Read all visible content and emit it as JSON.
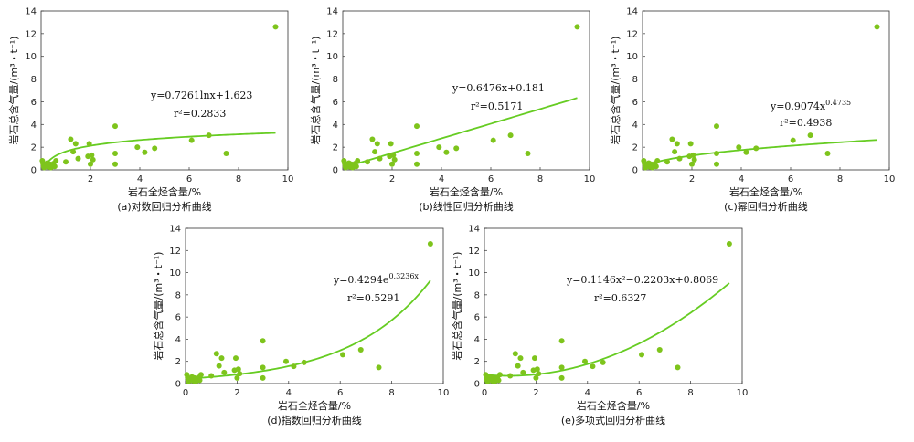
{
  "colors": {
    "points": "#7ec41c",
    "curve": "#66cc22",
    "axis": "#333333"
  },
  "chart_data": [
    {
      "type": "scatter",
      "panel_id": "a",
      "caption": "(a)对数回归分析曲线",
      "xlabel": "岩石全烃含量/%",
      "ylabel": "岩石总含气量/(m³・t⁻¹)",
      "xlim": [
        0,
        10
      ],
      "ylim": [
        0,
        14
      ],
      "xticks": [
        "2",
        "4",
        "6",
        "8",
        "10"
      ],
      "yticks": [
        "0",
        "2",
        "4",
        "6",
        "8",
        "10",
        "12",
        "14"
      ],
      "equation": "y=0.7261lnx+1.623",
      "r2": "r²=0.2833",
      "fit": {
        "model": "log",
        "a": 0.7261,
        "b": 1.623,
        "x_range": [
          0.15,
          9.5
        ]
      },
      "points": [
        [
          0.05,
          0.8
        ],
        [
          0.08,
          0.55
        ],
        [
          0.1,
          0.3
        ],
        [
          0.12,
          0.2
        ],
        [
          0.15,
          0.45
        ],
        [
          0.2,
          0.35
        ],
        [
          0.25,
          0.6
        ],
        [
          0.3,
          0.25
        ],
        [
          0.35,
          0.5
        ],
        [
          0.4,
          0.2
        ],
        [
          0.45,
          0.35
        ],
        [
          0.5,
          0.55
        ],
        [
          0.55,
          0.3
        ],
        [
          0.6,
          0.8
        ],
        [
          1.0,
          0.7
        ],
        [
          1.2,
          2.7
        ],
        [
          1.3,
          1.6
        ],
        [
          1.4,
          2.3
        ],
        [
          1.5,
          1.0
        ],
        [
          1.9,
          1.2
        ],
        [
          1.95,
          2.3
        ],
        [
          2.0,
          0.5
        ],
        [
          2.05,
          1.3
        ],
        [
          2.1,
          0.9
        ],
        [
          3.0,
          3.85
        ],
        [
          3.0,
          1.45
        ],
        [
          3.0,
          0.5
        ],
        [
          3.9,
          2.0
        ],
        [
          4.2,
          1.55
        ],
        [
          4.6,
          1.9
        ],
        [
          6.1,
          2.6
        ],
        [
          6.8,
          3.05
        ],
        [
          7.5,
          1.45
        ],
        [
          9.5,
          12.6
        ]
      ]
    },
    {
      "type": "scatter",
      "panel_id": "b",
      "caption": "(b)线性回归分析曲线",
      "xlabel": "岩石全烃含量/%",
      "ylabel": "岩石总含气量/(m³・t⁻¹)",
      "xlim": [
        0,
        10
      ],
      "ylim": [
        0,
        14
      ],
      "xticks": [
        "2",
        "4",
        "6",
        "8",
        "10"
      ],
      "yticks": [
        "0",
        "2",
        "4",
        "6",
        "8",
        "10",
        "12",
        "14"
      ],
      "equation": "y=0.6476x+0.181",
      "r2": "r²=0.5171",
      "fit": {
        "model": "linear",
        "a": 0.6476,
        "b": 0.181,
        "x_range": [
          0.05,
          9.5
        ]
      },
      "points": [
        [
          0.05,
          0.8
        ],
        [
          0.08,
          0.55
        ],
        [
          0.1,
          0.3
        ],
        [
          0.12,
          0.2
        ],
        [
          0.15,
          0.45
        ],
        [
          0.2,
          0.35
        ],
        [
          0.25,
          0.6
        ],
        [
          0.3,
          0.25
        ],
        [
          0.35,
          0.5
        ],
        [
          0.4,
          0.2
        ],
        [
          0.45,
          0.35
        ],
        [
          0.5,
          0.55
        ],
        [
          0.55,
          0.3
        ],
        [
          0.6,
          0.8
        ],
        [
          1.0,
          0.7
        ],
        [
          1.2,
          2.7
        ],
        [
          1.3,
          1.6
        ],
        [
          1.4,
          2.3
        ],
        [
          1.5,
          1.0
        ],
        [
          1.9,
          1.2
        ],
        [
          1.95,
          2.3
        ],
        [
          2.0,
          0.5
        ],
        [
          2.05,
          1.3
        ],
        [
          2.1,
          0.9
        ],
        [
          3.0,
          3.85
        ],
        [
          3.0,
          1.45
        ],
        [
          3.0,
          0.5
        ],
        [
          3.9,
          2.0
        ],
        [
          4.2,
          1.55
        ],
        [
          4.6,
          1.9
        ],
        [
          6.1,
          2.6
        ],
        [
          6.8,
          3.05
        ],
        [
          7.5,
          1.45
        ],
        [
          9.5,
          12.6
        ]
      ]
    },
    {
      "type": "scatter",
      "panel_id": "c",
      "caption": "(c)幂回归分析曲线",
      "xlabel": "岩石全烃含量/%",
      "ylabel": "岩石总含气量/(m³・t⁻¹)",
      "xlim": [
        0,
        10
      ],
      "ylim": [
        0,
        14
      ],
      "xticks": [
        "2",
        "4",
        "6",
        "8",
        "10"
      ],
      "yticks": [
        "0",
        "2",
        "4",
        "6",
        "8",
        "10",
        "12",
        "14"
      ],
      "equation": "y=0.9074x",
      "equation_sup": "0.4735",
      "r2": "r²=0.4938",
      "fit": {
        "model": "power",
        "a": 0.9074,
        "b": 0.4735,
        "x_range": [
          0.05,
          9.5
        ]
      },
      "points": [
        [
          0.05,
          0.8
        ],
        [
          0.08,
          0.55
        ],
        [
          0.1,
          0.3
        ],
        [
          0.12,
          0.2
        ],
        [
          0.15,
          0.45
        ],
        [
          0.2,
          0.35
        ],
        [
          0.25,
          0.6
        ],
        [
          0.3,
          0.25
        ],
        [
          0.35,
          0.5
        ],
        [
          0.4,
          0.2
        ],
        [
          0.45,
          0.35
        ],
        [
          0.5,
          0.55
        ],
        [
          0.55,
          0.3
        ],
        [
          0.6,
          0.8
        ],
        [
          1.0,
          0.7
        ],
        [
          1.2,
          2.7
        ],
        [
          1.3,
          1.6
        ],
        [
          1.4,
          2.3
        ],
        [
          1.5,
          1.0
        ],
        [
          1.9,
          1.2
        ],
        [
          1.95,
          2.3
        ],
        [
          2.0,
          0.5
        ],
        [
          2.05,
          1.3
        ],
        [
          2.1,
          0.9
        ],
        [
          3.0,
          3.85
        ],
        [
          3.0,
          1.45
        ],
        [
          3.0,
          0.5
        ],
        [
          3.9,
          2.0
        ],
        [
          4.2,
          1.55
        ],
        [
          4.6,
          1.9
        ],
        [
          6.1,
          2.6
        ],
        [
          6.8,
          3.05
        ],
        [
          7.5,
          1.45
        ],
        [
          9.5,
          12.6
        ]
      ]
    },
    {
      "type": "scatter",
      "panel_id": "d",
      "caption": "(d)指数回归分析曲线",
      "xlabel": "岩石全烃含量/%",
      "ylabel": "岩石总含气量/(m³・t⁻¹)",
      "xlim": [
        0,
        10
      ],
      "ylim": [
        0,
        14
      ],
      "xticks": [
        "0",
        "2",
        "4",
        "6",
        "8",
        "10"
      ],
      "yticks": [
        "0",
        "2",
        "4",
        "6",
        "8",
        "10",
        "12",
        "14"
      ],
      "equation": "y=0.4294e",
      "equation_sup": "0.3236x",
      "r2": "r²=0.5291",
      "fit": {
        "model": "exp",
        "a": 0.4294,
        "b": 0.3236,
        "x_range": [
          0.05,
          9.5
        ]
      },
      "points": [
        [
          0.05,
          0.8
        ],
        [
          0.08,
          0.55
        ],
        [
          0.1,
          0.3
        ],
        [
          0.12,
          0.2
        ],
        [
          0.15,
          0.45
        ],
        [
          0.2,
          0.35
        ],
        [
          0.25,
          0.6
        ],
        [
          0.3,
          0.25
        ],
        [
          0.35,
          0.5
        ],
        [
          0.4,
          0.2
        ],
        [
          0.45,
          0.35
        ],
        [
          0.5,
          0.55
        ],
        [
          0.55,
          0.3
        ],
        [
          0.6,
          0.8
        ],
        [
          1.0,
          0.7
        ],
        [
          1.2,
          2.7
        ],
        [
          1.3,
          1.6
        ],
        [
          1.4,
          2.3
        ],
        [
          1.5,
          1.0
        ],
        [
          1.9,
          1.2
        ],
        [
          1.95,
          2.3
        ],
        [
          2.0,
          0.5
        ],
        [
          2.05,
          1.3
        ],
        [
          2.1,
          0.9
        ],
        [
          3.0,
          3.85
        ],
        [
          3.0,
          1.45
        ],
        [
          3.0,
          0.5
        ],
        [
          3.9,
          2.0
        ],
        [
          4.2,
          1.55
        ],
        [
          4.6,
          1.9
        ],
        [
          6.1,
          2.6
        ],
        [
          6.8,
          3.05
        ],
        [
          7.5,
          1.45
        ],
        [
          9.5,
          12.6
        ]
      ]
    },
    {
      "type": "scatter",
      "panel_id": "e",
      "caption": "(e)多项式回归分析曲线",
      "xlabel": "岩石全烃含量/%",
      "ylabel": "岩石总含气量/(m³・t⁻¹)",
      "xlim": [
        0,
        10
      ],
      "ylim": [
        0,
        14
      ],
      "xticks": [
        "0",
        "2",
        "4",
        "6",
        "8",
        "10"
      ],
      "yticks": [
        "0",
        "2",
        "4",
        "6",
        "8",
        "10",
        "12",
        "14"
      ],
      "equation": "y=0.1146x²−0.2203x+0.8069",
      "r2": "r²=0.6327",
      "fit": {
        "model": "poly2",
        "a": 0.1146,
        "b": -0.2203,
        "c": 0.8069,
        "x_range": [
          0.05,
          9.5
        ]
      },
      "points": [
        [
          0.05,
          0.8
        ],
        [
          0.08,
          0.55
        ],
        [
          0.1,
          0.3
        ],
        [
          0.12,
          0.2
        ],
        [
          0.15,
          0.45
        ],
        [
          0.2,
          0.35
        ],
        [
          0.25,
          0.6
        ],
        [
          0.3,
          0.25
        ],
        [
          0.35,
          0.5
        ],
        [
          0.4,
          0.2
        ],
        [
          0.45,
          0.35
        ],
        [
          0.5,
          0.55
        ],
        [
          0.55,
          0.3
        ],
        [
          0.6,
          0.8
        ],
        [
          1.0,
          0.7
        ],
        [
          1.2,
          2.7
        ],
        [
          1.3,
          1.6
        ],
        [
          1.4,
          2.3
        ],
        [
          1.5,
          1.0
        ],
        [
          1.9,
          1.2
        ],
        [
          1.95,
          2.3
        ],
        [
          2.0,
          0.5
        ],
        [
          2.05,
          1.3
        ],
        [
          2.1,
          0.9
        ],
        [
          3.0,
          3.85
        ],
        [
          3.0,
          1.45
        ],
        [
          3.0,
          0.5
        ],
        [
          3.9,
          2.0
        ],
        [
          4.2,
          1.55
        ],
        [
          4.6,
          1.9
        ],
        [
          6.1,
          2.6
        ],
        [
          6.8,
          3.05
        ],
        [
          7.5,
          1.45
        ],
        [
          9.5,
          12.6
        ]
      ]
    }
  ]
}
